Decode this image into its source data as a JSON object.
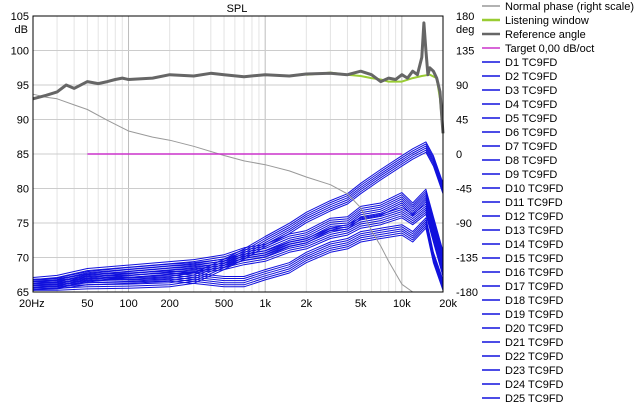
{
  "chart_data": {
    "type": "line",
    "title": "SPL",
    "x_scale": "log",
    "xlim": [
      20,
      20000
    ],
    "ylim": [
      65,
      105
    ],
    "y2lim": [
      -180,
      180
    ],
    "grid": true,
    "legend_position": "right",
    "ylabel": "dB",
    "y2label": "deg",
    "x_ticks": [
      {
        "value": 20,
        "label": "20Hz"
      },
      {
        "value": 50,
        "label": "50"
      },
      {
        "value": 100,
        "label": "100"
      },
      {
        "value": 200,
        "label": "200"
      },
      {
        "value": 500,
        "label": "500"
      },
      {
        "value": 1000,
        "label": "1k"
      },
      {
        "value": 2000,
        "label": "2k"
      },
      {
        "value": 5000,
        "label": "5k"
      },
      {
        "value": 10000,
        "label": "10k"
      },
      {
        "value": 20000,
        "label": "20k"
      }
    ],
    "y_ticks": [
      {
        "value": 105,
        "label": "105"
      },
      {
        "value": 100,
        "label": "100"
      },
      {
        "value": 95,
        "label": "95"
      },
      {
        "value": 90,
        "label": "90"
      },
      {
        "value": 85,
        "label": "85"
      },
      {
        "value": 80,
        "label": "80"
      },
      {
        "value": 75,
        "label": "75"
      },
      {
        "value": 70,
        "label": "70"
      },
      {
        "value": 65,
        "label": "65"
      }
    ],
    "y2_ticks": [
      {
        "value": 180,
        "label": "180"
      },
      {
        "value": 135,
        "label": "135"
      },
      {
        "value": 90,
        "label": "90"
      },
      {
        "value": 45,
        "label": "45"
      },
      {
        "value": 0,
        "label": "0"
      },
      {
        "value": -45,
        "label": "-45"
      },
      {
        "value": -90,
        "label": "-90"
      },
      {
        "value": -135,
        "label": "-135"
      },
      {
        "value": -180,
        "label": "-180"
      }
    ],
    "series": [
      {
        "name": "Normal phase (right scale)",
        "color": "#999999",
        "axis": "right",
        "width": 1,
        "x": [
          20,
          25,
          30,
          40,
          50,
          70,
          100,
          150,
          200,
          300,
          500,
          700,
          1000,
          1500,
          2000,
          3000,
          4000,
          5000,
          6000,
          7000,
          8000,
          10000,
          12000,
          15000
        ],
        "y": [
          78,
          74,
          72,
          64,
          58,
          44,
          30,
          22,
          18,
          10,
          -2,
          -9,
          -14,
          -22,
          -30,
          -40,
          -52,
          -70,
          -100,
          -120,
          -140,
          -170,
          -180,
          -180
        ]
      },
      {
        "name": "Listening window",
        "color": "#99cc33",
        "axis": "left",
        "width": 2,
        "x": [
          2000,
          3000,
          4000,
          5000,
          6000,
          7000,
          8000,
          10000,
          12000,
          14000,
          16000,
          18000,
          19000,
          20000
        ],
        "y": [
          96.5,
          96.8,
          96.5,
          96.3,
          96,
          95.8,
          95.5,
          95.5,
          96,
          96.3,
          96.5,
          96,
          93,
          88
        ]
      },
      {
        "name": "Reference angle",
        "color": "#666666",
        "axis": "left",
        "width": 3,
        "x": [
          20,
          25,
          30,
          35,
          40,
          50,
          60,
          70,
          80,
          90,
          100,
          150,
          200,
          300,
          400,
          500,
          700,
          1000,
          1500,
          2000,
          3000,
          4000,
          5000,
          6000,
          7000,
          8000,
          9000,
          10000,
          11000,
          12000,
          13000,
          14000,
          14500,
          15000,
          15500,
          16000,
          17000,
          18000,
          19000,
          20000
        ],
        "y": [
          93,
          93.5,
          94,
          95,
          94.5,
          95.5,
          95.2,
          95.5,
          95.8,
          96,
          95.8,
          96,
          96.5,
          96.3,
          96.7,
          96.5,
          96.2,
          96.5,
          96.3,
          96.6,
          96.7,
          96.5,
          97,
          96.5,
          95.5,
          96,
          95.8,
          96.5,
          96,
          97,
          96.5,
          99,
          104,
          100,
          96.5,
          97.5,
          97,
          96,
          94,
          88
        ]
      },
      {
        "name": "Target 0,00 dB/oct",
        "color": "#cc33cc",
        "axis": "left",
        "width": 1.5,
        "x": [
          50,
          10000
        ],
        "y": [
          85,
          85
        ]
      },
      {
        "name": "D1 TC9FD"
      },
      {
        "name": "D2 TC9FD"
      },
      {
        "name": "D3 TC9FD"
      },
      {
        "name": "D4 TC9FD"
      },
      {
        "name": "D5 TC9FD"
      },
      {
        "name": "D6 TC9FD"
      },
      {
        "name": "D7 TC9FD"
      },
      {
        "name": "D8 TC9FD"
      },
      {
        "name": "D9 TC9FD"
      },
      {
        "name": "D10 TC9FD"
      },
      {
        "name": "D11 TC9FD"
      },
      {
        "name": "D12 TC9FD"
      },
      {
        "name": "D13 TC9FD"
      },
      {
        "name": "D14 TC9FD"
      },
      {
        "name": "D15 TC9FD"
      },
      {
        "name": "D16 TC9FD"
      },
      {
        "name": "D17 TC9FD"
      },
      {
        "name": "D18 TC9FD"
      },
      {
        "name": "D19 TC9FD"
      },
      {
        "name": "D20 TC9FD"
      },
      {
        "name": "D21 TC9FD"
      },
      {
        "name": "D22 TC9FD"
      },
      {
        "name": "D23 TC9FD"
      },
      {
        "name": "D24 TC9FD"
      },
      {
        "name": "D25 TC9FD"
      }
    ],
    "driver_style": {
      "color": "#1111dd",
      "width": 1
    },
    "driver_groups": [
      {
        "count": 6,
        "x": [
          20,
          30,
          50,
          100,
          200,
          300,
          500,
          700,
          1000,
          1500,
          2000,
          3000,
          4000,
          5000,
          7000,
          10000,
          12000,
          15000,
          17000,
          20000
        ],
        "y": [
          66,
          66,
          66.2,
          66.3,
          66.5,
          67,
          69,
          70.5,
          72.3,
          74.2,
          75.8,
          77.5,
          78.5,
          80,
          82,
          84,
          85,
          86,
          84,
          80
        ]
      },
      {
        "count": 7,
        "x": [
          20,
          30,
          50,
          100,
          200,
          300,
          500,
          700,
          1000,
          1500,
          2000,
          3000,
          4000,
          5000,
          7000,
          10000,
          12000,
          15000,
          17000,
          20000
        ],
        "y": [
          66.2,
          66.5,
          67.5,
          68,
          68.5,
          68.8,
          69.5,
          70.5,
          71,
          72.5,
          73,
          74.8,
          75,
          76.5,
          77,
          78.5,
          77,
          79,
          75,
          70
        ]
      },
      {
        "count": 6,
        "x": [
          20,
          30,
          50,
          100,
          200,
          300,
          500,
          700,
          1000,
          1500,
          2000,
          3000,
          4000,
          5000,
          7000,
          10000,
          12000,
          15000,
          17000,
          20000
        ],
        "y": [
          66,
          66.3,
          67.2,
          67.8,
          68.3,
          68.5,
          69,
          69.7,
          70.2,
          71.5,
          72,
          73.5,
          74,
          75,
          75.5,
          76.5,
          75.5,
          77,
          73,
          68
        ]
      },
      {
        "count": 6,
        "x": [
          20,
          30,
          50,
          100,
          200,
          300,
          500,
          700,
          1000,
          1500,
          2000,
          3000,
          4000,
          5000,
          7000,
          10000,
          12000,
          15000,
          17000,
          20000
        ],
        "y": [
          66.1,
          66.2,
          66.8,
          67,
          67.3,
          67,
          66.5,
          66.5,
          67.5,
          68.5,
          70,
          71.5,
          72,
          73,
          73.5,
          74,
          73,
          75,
          70,
          66
        ]
      }
    ]
  }
}
